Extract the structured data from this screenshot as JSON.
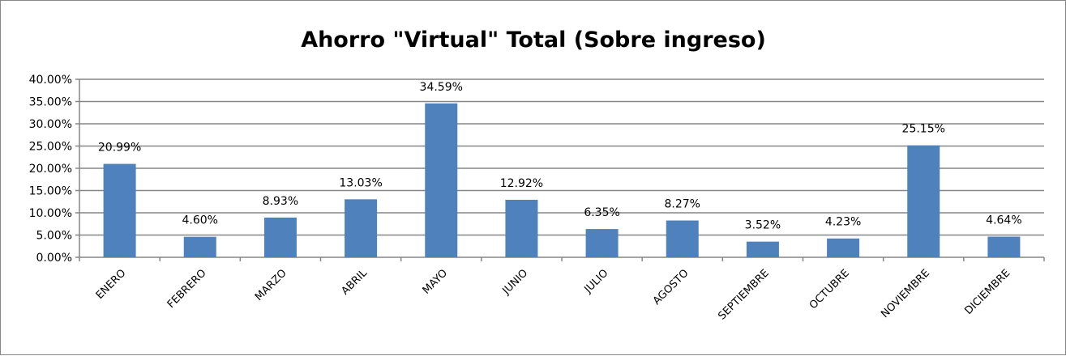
{
  "chart_data": {
    "type": "bar",
    "title": "Ahorro \"Virtual\" Total (Sobre ingreso)",
    "xlabel": "",
    "ylabel": "",
    "categories": [
      "ENERO",
      "FEBRERO",
      "MARZO",
      "ABRIL",
      "MAYO",
      "JUNIO",
      "JULIO",
      "AGOSTO",
      "SEPTIEMBRE",
      "OCTUBRE",
      "NOVIEMBRE",
      "DICIEMBRE"
    ],
    "values": [
      20.99,
      4.6,
      8.93,
      13.03,
      34.59,
      12.92,
      6.35,
      8.27,
      3.52,
      4.23,
      25.15,
      4.64
    ],
    "data_labels": [
      "20.99%",
      "4.60%",
      "8.93%",
      "13.03%",
      "34.59%",
      "12.92%",
      "6.35%",
      "8.27%",
      "3.52%",
      "4.23%",
      "25.15%",
      "4.64%"
    ],
    "ylim": [
      0,
      40
    ],
    "yticks": [
      "0.00%",
      "5.00%",
      "10.00%",
      "15.00%",
      "20.00%",
      "25.00%",
      "30.00%",
      "35.00%",
      "40.00%"
    ],
    "grid": true,
    "legend": "none",
    "bar_color": "#4F81BD",
    "grid_color": "#868686"
  }
}
